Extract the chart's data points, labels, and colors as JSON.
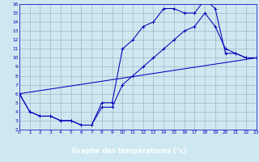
{
  "title": "Graphe des températures (°c)",
  "bg_color": "#cde8f0",
  "xlabel_bg": "#2244aa",
  "xlabel_fg": "#ffffff",
  "line_color": "#0000bb",
  "grid_color": "#99aabb",
  "xlim": [
    0,
    23
  ],
  "ylim": [
    2,
    16
  ],
  "xtick_labels": [
    "0",
    "1",
    "2",
    "3",
    "4",
    "5",
    "6",
    "7",
    "8",
    "9",
    "10",
    "11",
    "12",
    "13",
    "14",
    "15",
    "16",
    "17",
    "18",
    "19",
    "20",
    "21",
    "22",
    "23"
  ],
  "ytick_labels": [
    "2",
    "3",
    "4",
    "5",
    "6",
    "7",
    "8",
    "9",
    "10",
    "11",
    "12",
    "13",
    "14",
    "15",
    "16"
  ],
  "line1_x": [
    0,
    1,
    2,
    3,
    4,
    5,
    6,
    7,
    8,
    9,
    10,
    11,
    12,
    13,
    14,
    15,
    16,
    17,
    18,
    19,
    20,
    21,
    22,
    23
  ],
  "line1_y": [
    6.0,
    4.0,
    3.5,
    3.5,
    3.0,
    3.0,
    2.5,
    2.5,
    5.0,
    5.0,
    11.0,
    12.0,
    13.5,
    14.0,
    15.5,
    15.5,
    15.0,
    15.0,
    16.5,
    15.5,
    10.5,
    10.5,
    10.0,
    10.0
  ],
  "line2_x": [
    0,
    1,
    2,
    3,
    4,
    5,
    6,
    7,
    8,
    9,
    10,
    11,
    12,
    13,
    14,
    15,
    16,
    17,
    18,
    19,
    20,
    21,
    22,
    23
  ],
  "line2_y": [
    6.0,
    4.0,
    3.5,
    3.5,
    3.0,
    3.0,
    2.5,
    2.5,
    4.5,
    4.5,
    7.0,
    8.0,
    9.0,
    10.0,
    11.0,
    12.0,
    13.0,
    13.5,
    15.0,
    13.5,
    11.0,
    10.5,
    10.0,
    10.0
  ],
  "line3_x": [
    0,
    23
  ],
  "line3_y": [
    6.0,
    10.0
  ]
}
